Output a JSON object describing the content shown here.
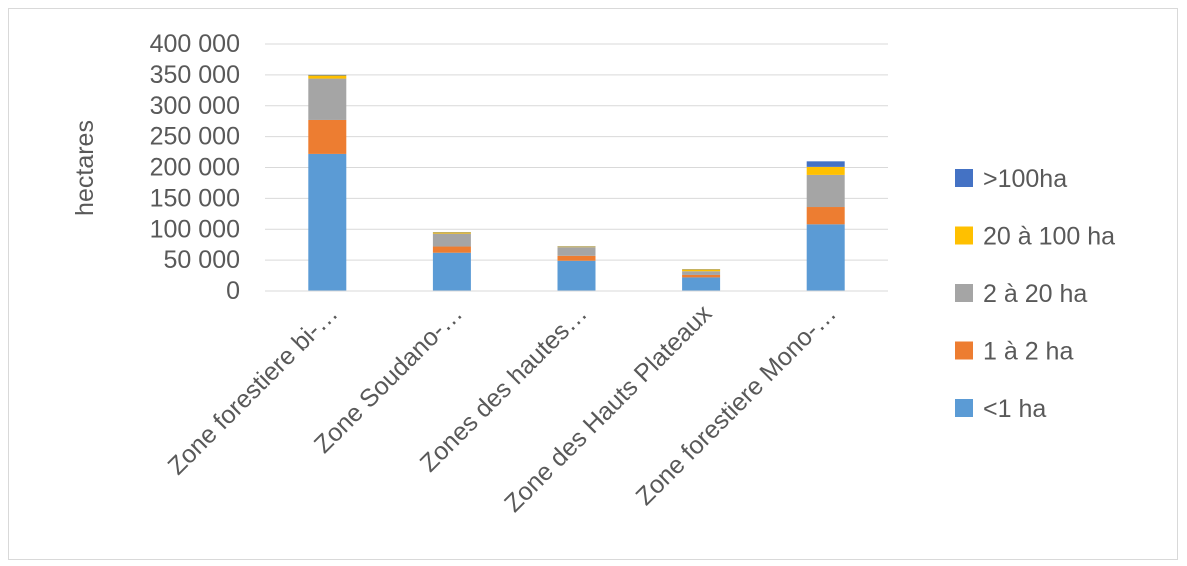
{
  "chart_data": {
    "type": "bar",
    "stacked": true,
    "ylabel": "hectares",
    "ylim": [
      0,
      400000
    ],
    "yticks": [
      0,
      50000,
      100000,
      150000,
      200000,
      250000,
      300000,
      350000,
      400000
    ],
    "ytick_labels": [
      "0",
      "50 000",
      "100 000",
      "150 000",
      "200 000",
      "250 000",
      "300 000",
      "350 000",
      "400 000"
    ],
    "grid": true,
    "legend_position": "right",
    "categories": [
      "Zone forestiere bi-…",
      "Zone Soudano-…",
      "Zones des hautes…",
      "Zone des Hauts Plateaux",
      "Zone forestiere Mono-…"
    ],
    "series": [
      {
        "name": "<1 ha",
        "color": "#5B9BD5",
        "values": [
          222000,
          62000,
          49000,
          22000,
          108000
        ]
      },
      {
        "name": "1 à 2 ha",
        "color": "#ED7D31",
        "values": [
          55000,
          10000,
          8000,
          4000,
          28000
        ]
      },
      {
        "name": "2 à 20 ha",
        "color": "#A5A5A5",
        "values": [
          67000,
          21000,
          14000,
          6000,
          52000
        ]
      },
      {
        "name": "20 à 100 ha",
        "color": "#FFC000",
        "values": [
          5000,
          2000,
          1000,
          3000,
          13000
        ]
      },
      {
        "name": ">100ha",
        "color": "#4472C4",
        "values": [
          1000,
          500,
          500,
          500,
          9000
        ]
      }
    ]
  }
}
